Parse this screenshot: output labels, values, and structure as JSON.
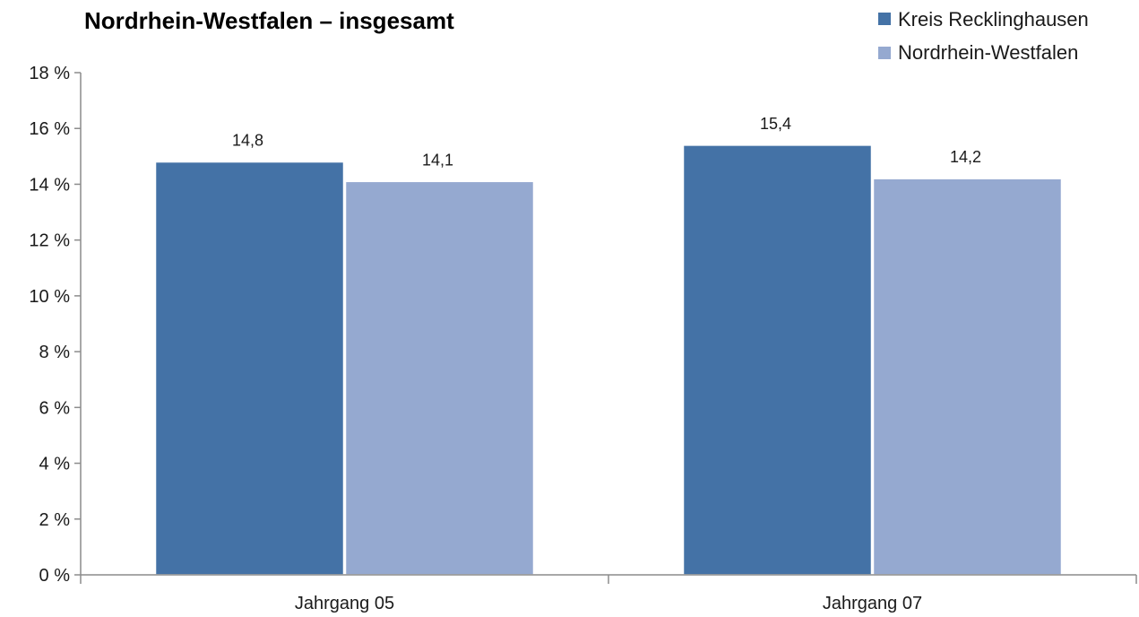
{
  "chart_data": {
    "type": "bar",
    "title": "Nordrhein-Westfalen – insgesamt",
    "categories": [
      "Jahrgang 05",
      "Jahrgang 07"
    ],
    "series": [
      {
        "name": "Kreis Recklinghausen",
        "values": [
          14.8,
          15.4
        ],
        "labels": [
          "14,8",
          "15,4"
        ],
        "color": "#4472a6"
      },
      {
        "name": "Nordrhein-Westfalen",
        "values": [
          14.1,
          14.2
        ],
        "labels": [
          "14,1",
          "14,2"
        ],
        "color": "#95a9d0"
      }
    ],
    "ylim": [
      0,
      18
    ],
    "yticks": [
      0,
      2,
      4,
      6,
      8,
      10,
      12,
      14,
      16,
      18
    ],
    "ytick_labels": [
      "0 %",
      "2 %",
      "4 %",
      "6 %",
      "8 %",
      "10 %",
      "12 %",
      "14 %",
      "16 %",
      "18 %"
    ],
    "xlabel": "",
    "ylabel": "",
    "grid": false,
    "legend_position": "top-right"
  }
}
